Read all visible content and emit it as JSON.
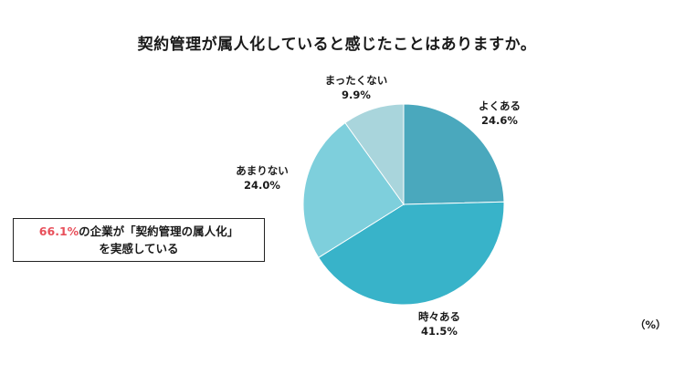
{
  "chart_data": {
    "type": "pie",
    "title": "契約管理が属人化していると感じたことはありますか。",
    "unit_label": "（%）",
    "start_angle_deg": 0,
    "direction": "clockwise",
    "slices": [
      {
        "label": "よくある",
        "value": 24.6,
        "value_text": "24.6%",
        "color": "#4aa8bd"
      },
      {
        "label": "時々ある",
        "value": 41.5,
        "value_text": "41.5%",
        "color": "#38b3c9"
      },
      {
        "label": "あまりない",
        "value": 24.0,
        "value_text": "24.0%",
        "color": "#7ecfdc"
      },
      {
        "label": "まったくない",
        "value": 9.9,
        "value_text": "9.9%",
        "color": "#a9d5dc"
      }
    ]
  },
  "callout": {
    "highlight": "66.1%",
    "line1_rest": "の企業が「契約管理の属人化」",
    "line2": "を実感している",
    "highlight_color": "#e8505b"
  }
}
